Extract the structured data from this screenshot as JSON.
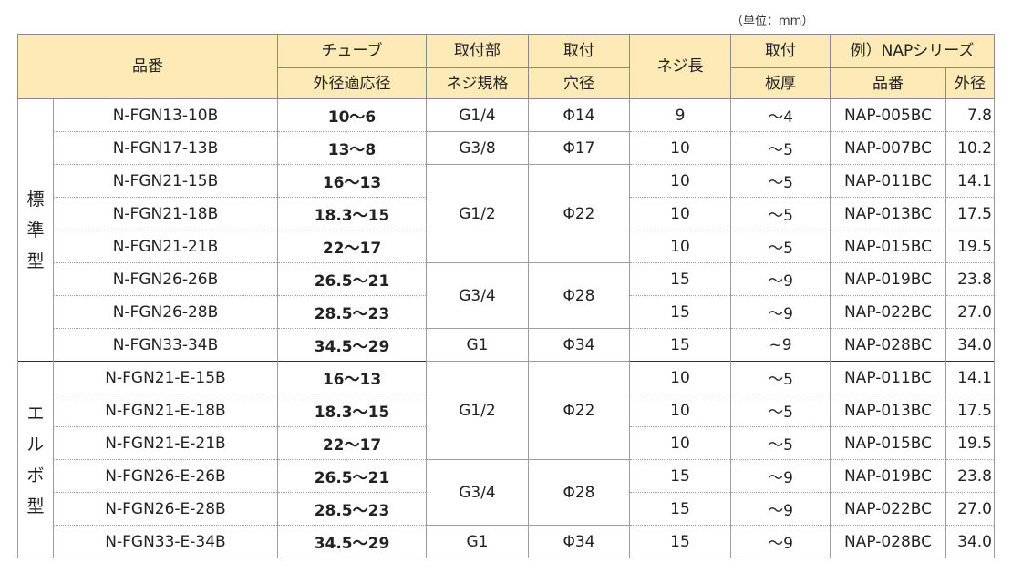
{
  "unit_label": "（単位：mm）",
  "headers": {
    "part_no": "品番",
    "tube_od_1": "チューブ",
    "tube_od_2": "外径適応径",
    "thread_1": "取付部",
    "thread_2": "ネジ規格",
    "hole_1": "取付",
    "hole_2": "穴径",
    "thread_len": "ネジ長",
    "plate_1": "取付",
    "plate_2": "板厚",
    "nap_series": "例）NAPシリーズ",
    "nap_part": "品番",
    "nap_od": "外径"
  },
  "groups": [
    {
      "label": "標準型",
      "rows": [
        {
          "part": "N-FGN13-10B",
          "tube": "10〜6",
          "thread": "G1/4",
          "hole": "Φ14",
          "len": "9",
          "plate": "〜4",
          "nap": "NAP-005BC",
          "od": "7.8"
        },
        {
          "part": "N-FGN17-13B",
          "tube": "13〜8",
          "thread": "G3/8",
          "hole": "Φ17",
          "len": "10",
          "plate": "〜5",
          "nap": "NAP-007BC",
          "od": "10.2"
        },
        {
          "part": "N-FGN21-15B",
          "tube": "16〜13",
          "thread": "G1/2",
          "hole": "Φ22",
          "len": "10",
          "plate": "〜5",
          "nap": "NAP-011BC",
          "od": "14.1"
        },
        {
          "part": "N-FGN21-18B",
          "tube": "18.3〜15",
          "len": "10",
          "plate": "〜5",
          "nap": "NAP-013BC",
          "od": "17.5"
        },
        {
          "part": "N-FGN21-21B",
          "tube": "22〜17",
          "len": "10",
          "plate": "〜5",
          "nap": "NAP-015BC",
          "od": "19.5"
        },
        {
          "part": "N-FGN26-26B",
          "tube": "26.5〜21",
          "thread": "G3/4",
          "hole": "Φ28",
          "len": "15",
          "plate": "〜9",
          "nap": "NAP-019BC",
          "od": "23.8"
        },
        {
          "part": "N-FGN26-28B",
          "tube": "28.5〜23",
          "len": "15",
          "plate": "〜9",
          "nap": "NAP-022BC",
          "od": "27.0"
        },
        {
          "part": "N-FGN33-34B",
          "tube": "34.5〜29",
          "thread": "G1",
          "hole": "Φ34",
          "len": "15",
          "plate": "~9",
          "nap": "NAP-028BC",
          "od": "34.0"
        }
      ]
    },
    {
      "label": "エルボ型",
      "rows": [
        {
          "part": "N-FGN21-E-15B",
          "tube": "16〜13",
          "thread": "G1/2",
          "hole": "Φ22",
          "len": "10",
          "plate": "〜5",
          "nap": "NAP-011BC",
          "od": "14.1"
        },
        {
          "part": "N-FGN21-E-18B",
          "tube": "18.3〜15",
          "len": "10",
          "plate": "〜5",
          "nap": "NAP-013BC",
          "od": "17.5"
        },
        {
          "part": "N-FGN21-E-21B",
          "tube": "22〜17",
          "len": "10",
          "plate": "〜5",
          "nap": "NAP-015BC",
          "od": "19.5"
        },
        {
          "part": "N-FGN26-E-26B",
          "tube": "26.5〜21",
          "thread": "G3/4",
          "hole": "Φ28",
          "len": "15",
          "plate": "〜9",
          "nap": "NAP-019BC",
          "od": "23.8"
        },
        {
          "part": "N-FGN26-E-28B",
          "tube": "28.5〜23",
          "len": "15",
          "plate": "〜9",
          "nap": "NAP-022BC",
          "od": "27.0"
        },
        {
          "part": "N-FGN33-E-34B",
          "tube": "34.5〜29",
          "thread": "G1",
          "hole": "Φ34",
          "len": "15",
          "plate": "〜9",
          "nap": "NAP-028BC",
          "od": "34.0"
        }
      ]
    }
  ]
}
